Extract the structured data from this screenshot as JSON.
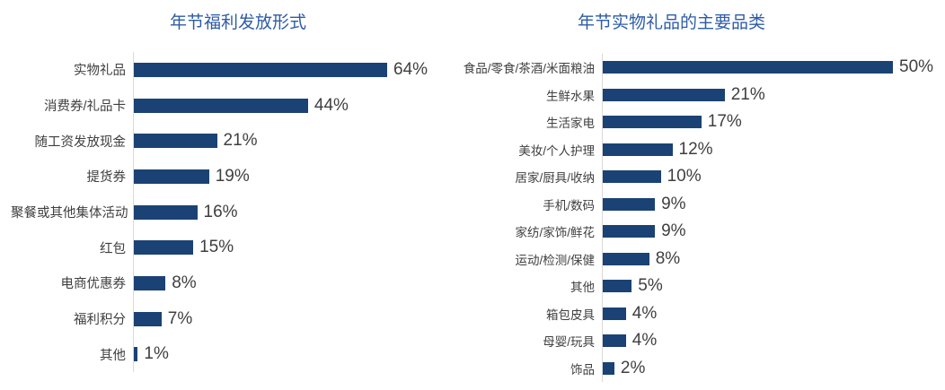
{
  "colors": {
    "bar": "#1B4274",
    "title": "#2E5CA6",
    "text": "#3F3F3F",
    "axis_line": "#D9D9D9",
    "background": "#FFFFFF"
  },
  "chart_data": [
    {
      "type": "bar",
      "orientation": "horizontal",
      "title": "年节福利发放形式",
      "categories": [
        "实物礼品",
        "消费券/礼品卡",
        "随工资发放现金",
        "提货券",
        "聚餐或其他集体活动",
        "红包",
        "电商优惠券",
        "福利积分",
        "其他"
      ],
      "values": [
        64,
        44,
        21,
        19,
        16,
        15,
        8,
        7,
        1
      ],
      "value_suffix": "%",
      "xlabel": "",
      "ylabel": "",
      "xlim": [
        0,
        70
      ],
      "grid": false,
      "legend": false,
      "data_labels": "outside-end"
    },
    {
      "type": "bar",
      "orientation": "horizontal",
      "title": "年节实物礼品的主要品类",
      "categories": [
        "食品/零食/茶酒/米面粮油",
        "生鲜水果",
        "生活家电",
        "美妆/个人护理",
        "居家/厨具/收纳",
        "手机/数码",
        "家纺/家饰/鲜花",
        "运动/检测/保健",
        "其他",
        "箱包皮具",
        "母婴/玩具",
        "饰品"
      ],
      "values": [
        50,
        21,
        17,
        12,
        10,
        9,
        9,
        8,
        5,
        4,
        4,
        2
      ],
      "value_suffix": "%",
      "xlabel": "",
      "ylabel": "",
      "xlim": [
        0,
        55
      ],
      "grid": false,
      "legend": false,
      "data_labels": "outside-end"
    }
  ]
}
